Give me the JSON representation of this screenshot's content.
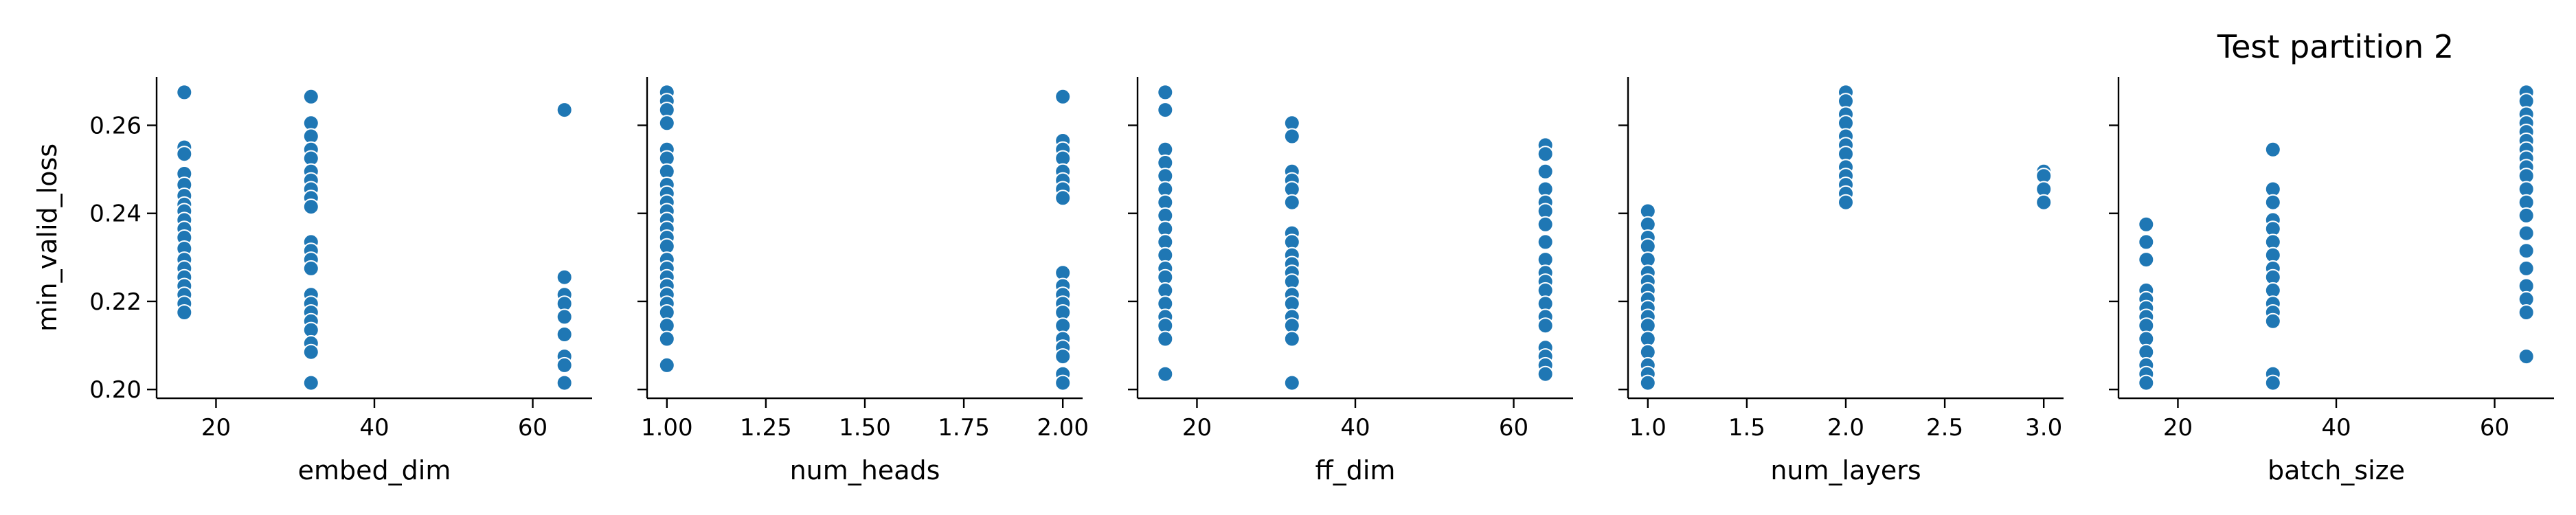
{
  "figure": {
    "title": "Test partition 2",
    "marker_color": "#1f77b4",
    "axis_color": "#000000"
  },
  "chart_data": [
    {
      "type": "scatter",
      "xlabel": "embed_dim",
      "ylabel": "min_valid_loss",
      "xlim": [
        12.5,
        67.5
      ],
      "ylim": [
        0.198,
        0.271
      ],
      "xticks": [
        20,
        40,
        60
      ],
      "xtick_labels": [
        "20",
        "40",
        "60"
      ],
      "yticks": [
        0.2,
        0.22,
        0.24,
        0.26
      ],
      "ytick_labels": [
        "0.20",
        "0.22",
        "0.24",
        "0.26"
      ],
      "groups": [
        {
          "x": 16,
          "y": [
            0.2675,
            0.255,
            0.2535,
            0.249,
            0.2465,
            0.244,
            0.242,
            0.2405,
            0.2385,
            0.2365,
            0.2345,
            0.232,
            0.2295,
            0.2275,
            0.2255,
            0.2235,
            0.2215,
            0.2195,
            0.2175
          ]
        },
        {
          "x": 32,
          "y": [
            0.2665,
            0.2605,
            0.2575,
            0.2545,
            0.2525,
            0.2495,
            0.2475,
            0.2455,
            0.2435,
            0.2415,
            0.2335,
            0.2315,
            0.2295,
            0.2275,
            0.2215,
            0.2195,
            0.2175,
            0.2155,
            0.2135,
            0.2105,
            0.2085,
            0.2015
          ]
        },
        {
          "x": 64,
          "y": [
            0.2635,
            0.2255,
            0.2215,
            0.2195,
            0.2165,
            0.2125,
            0.2075,
            0.2055,
            0.2015
          ]
        }
      ]
    },
    {
      "type": "scatter",
      "xlabel": "num_heads",
      "ylabel": "",
      "xlim": [
        0.95,
        2.05
      ],
      "ylim": [
        0.198,
        0.271
      ],
      "xticks": [
        1.0,
        1.25,
        1.5,
        1.75,
        2.0
      ],
      "xtick_labels": [
        "1.00",
        "1.25",
        "1.50",
        "1.75",
        "2.00"
      ],
      "yticks": [
        0.2,
        0.22,
        0.24,
        0.26
      ],
      "ytick_labels": [
        "",
        "",
        "",
        ""
      ],
      "groups": [
        {
          "x": 1.0,
          "y": [
            0.2675,
            0.2655,
            0.2635,
            0.2605,
            0.2545,
            0.2525,
            0.2495,
            0.2465,
            0.2445,
            0.2425,
            0.2405,
            0.2385,
            0.2365,
            0.2345,
            0.2325,
            0.2295,
            0.2275,
            0.2255,
            0.2235,
            0.2215,
            0.2195,
            0.2175,
            0.2145,
            0.2115,
            0.2055
          ]
        },
        {
          "x": 2.0,
          "y": [
            0.2665,
            0.2565,
            0.2545,
            0.2525,
            0.2495,
            0.2475,
            0.2455,
            0.2435,
            0.2265,
            0.2235,
            0.2215,
            0.2195,
            0.2175,
            0.2145,
            0.2115,
            0.2095,
            0.2075,
            0.2035,
            0.2015
          ]
        }
      ]
    },
    {
      "type": "scatter",
      "xlabel": "ff_dim",
      "ylabel": "",
      "xlim": [
        12.5,
        67.5
      ],
      "ylim": [
        0.198,
        0.271
      ],
      "xticks": [
        20,
        40,
        60
      ],
      "xtick_labels": [
        "20",
        "40",
        "60"
      ],
      "yticks": [
        0.2,
        0.22,
        0.24,
        0.26
      ],
      "ytick_labels": [
        "",
        "",
        "",
        ""
      ],
      "groups": [
        {
          "x": 16,
          "y": [
            0.2675,
            0.2635,
            0.2545,
            0.2515,
            0.2485,
            0.2455,
            0.2425,
            0.2395,
            0.2365,
            0.2335,
            0.2305,
            0.2275,
            0.2255,
            0.2225,
            0.2195,
            0.2165,
            0.2145,
            0.2115,
            0.2035
          ]
        },
        {
          "x": 32,
          "y": [
            0.2605,
            0.2575,
            0.2495,
            0.2475,
            0.2455,
            0.2425,
            0.2355,
            0.2335,
            0.2305,
            0.2285,
            0.2265,
            0.2245,
            0.2215,
            0.2195,
            0.2165,
            0.2145,
            0.2115,
            0.2015
          ]
        },
        {
          "x": 64,
          "y": [
            0.2555,
            0.2535,
            0.2495,
            0.2455,
            0.2425,
            0.2405,
            0.2375,
            0.2335,
            0.2295,
            0.2265,
            0.2245,
            0.2225,
            0.2195,
            0.2165,
            0.2145,
            0.2095,
            0.2075,
            0.2055,
            0.2035
          ]
        }
      ]
    },
    {
      "type": "scatter",
      "xlabel": "num_layers",
      "ylabel": "",
      "xlim": [
        0.9,
        3.1
      ],
      "ylim": [
        0.198,
        0.271
      ],
      "xticks": [
        1.0,
        1.5,
        2.0,
        2.5,
        3.0
      ],
      "xtick_labels": [
        "1.0",
        "1.5",
        "2.0",
        "2.5",
        "3.0"
      ],
      "yticks": [
        0.2,
        0.22,
        0.24,
        0.26
      ],
      "ytick_labels": [
        "",
        "",
        "",
        ""
      ],
      "groups": [
        {
          "x": 1.0,
          "y": [
            0.2405,
            0.2375,
            0.2345,
            0.2325,
            0.2295,
            0.2265,
            0.2245,
            0.2225,
            0.2205,
            0.2185,
            0.2165,
            0.2145,
            0.2115,
            0.2085,
            0.2055,
            0.2035,
            0.2015
          ]
        },
        {
          "x": 2.0,
          "y": [
            0.2675,
            0.2655,
            0.2625,
            0.2605,
            0.2575,
            0.2555,
            0.2535,
            0.2505,
            0.2485,
            0.2465,
            0.2445,
            0.2425
          ]
        },
        {
          "x": 3.0,
          "y": [
            0.2495,
            0.2485,
            0.2455,
            0.2425
          ]
        }
      ]
    },
    {
      "type": "scatter",
      "xlabel": "batch_size",
      "ylabel": "",
      "xlim": [
        12.5,
        67.5
      ],
      "ylim": [
        0.198,
        0.271
      ],
      "xticks": [
        20,
        40,
        60
      ],
      "xtick_labels": [
        "20",
        "40",
        "60"
      ],
      "yticks": [
        0.2,
        0.22,
        0.24,
        0.26
      ],
      "ytick_labels": [
        "",
        "",
        "",
        ""
      ],
      "groups": [
        {
          "x": 16,
          "y": [
            0.2375,
            0.2335,
            0.2295,
            0.2225,
            0.2205,
            0.2185,
            0.2165,
            0.2145,
            0.2115,
            0.2085,
            0.2055,
            0.2035,
            0.2015
          ]
        },
        {
          "x": 32,
          "y": [
            0.2545,
            0.2455,
            0.2425,
            0.2385,
            0.2365,
            0.2335,
            0.2305,
            0.2275,
            0.2255,
            0.2225,
            0.2195,
            0.2175,
            0.2155,
            0.2035,
            0.2015
          ]
        },
        {
          "x": 64,
          "y": [
            0.2675,
            0.2655,
            0.2625,
            0.2605,
            0.2585,
            0.2565,
            0.2545,
            0.2525,
            0.2505,
            0.2485,
            0.2455,
            0.2425,
            0.2395,
            0.2355,
            0.2315,
            0.2275,
            0.2235,
            0.2205,
            0.2175,
            0.2075
          ]
        }
      ]
    }
  ]
}
